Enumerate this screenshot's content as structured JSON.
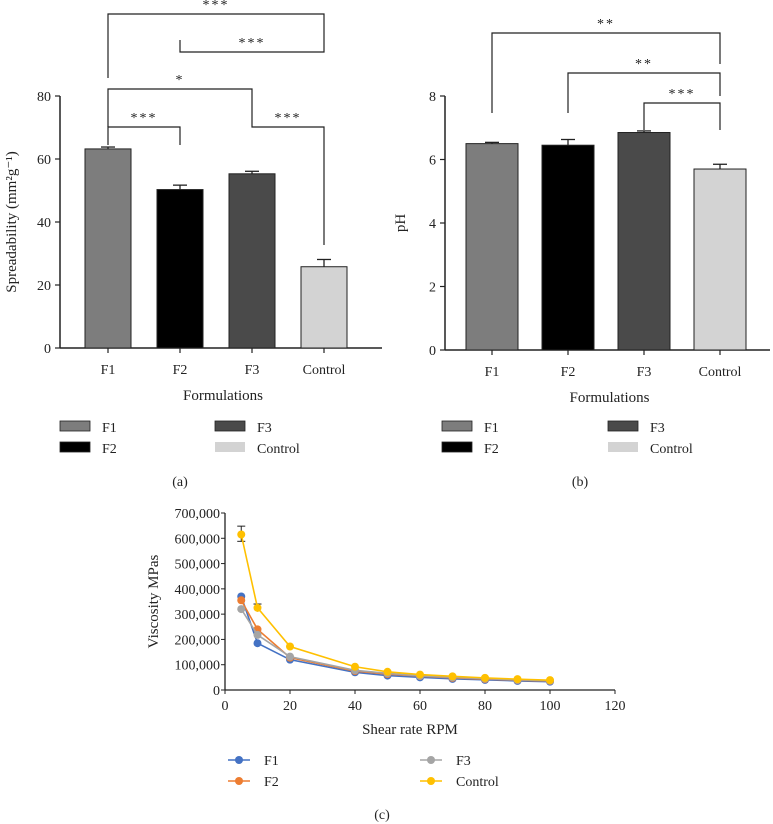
{
  "chart_data": [
    {
      "panel": "(a)",
      "type": "bar",
      "categories": [
        "F1",
        "F2",
        "F3",
        "Control"
      ],
      "values": [
        63.2,
        50.3,
        55.3,
        25.8
      ],
      "errors": [
        0.6,
        1.4,
        0.8,
        2.3
      ],
      "colors": [
        "#7d7d7d",
        "#000000",
        "#4a4a4a",
        "#d3d3d3"
      ],
      "ylim": [
        0,
        80
      ],
      "yticks": [
        "0",
        "20",
        "40",
        "60",
        "80"
      ],
      "xlabel": "Formulations",
      "ylabel": "Spreadability (mm²g⁻¹)",
      "significance": [
        {
          "from": "F1",
          "to": "Control",
          "label": "***"
        },
        {
          "from": "F2",
          "to": "Control",
          "label": "***"
        },
        {
          "from": "F1",
          "to": "F3",
          "label": "*"
        },
        {
          "from": "F1",
          "to": "F2",
          "label": "***"
        },
        {
          "from": "F3",
          "to": "Control",
          "label": "***"
        }
      ],
      "legend": [
        "F1",
        "F2",
        "F3",
        "Control"
      ]
    },
    {
      "panel": "(b)",
      "type": "bar",
      "categories": [
        "F1",
        "F2",
        "F3",
        "Control"
      ],
      "values": [
        6.5,
        6.45,
        6.85,
        5.7
      ],
      "errors": [
        0.04,
        0.18,
        0.05,
        0.15
      ],
      "colors": [
        "#7d7d7d",
        "#000000",
        "#4a4a4a",
        "#d3d3d3"
      ],
      "ylim": [
        0,
        8
      ],
      "yticks": [
        "0",
        "2",
        "4",
        "6",
        "8"
      ],
      "xlabel": "Formulations",
      "ylabel": "pH",
      "significance": [
        {
          "from": "F1",
          "to": "Control",
          "label": "**"
        },
        {
          "from": "F2",
          "to": "Control",
          "label": "**"
        },
        {
          "from": "F3",
          "to": "Control",
          "label": "***"
        }
      ],
      "legend": [
        "F1",
        "F2",
        "F3",
        "Control"
      ]
    },
    {
      "panel": "(c)",
      "type": "line",
      "x": [
        5,
        10,
        20,
        40,
        50,
        60,
        70,
        80,
        90,
        100
      ],
      "series": [
        {
          "name": "F1",
          "color": "#4472c4",
          "values": [
            370000,
            185000,
            120000,
            70000,
            57000,
            50000,
            44000,
            40000,
            36000,
            33000
          ]
        },
        {
          "name": "F2",
          "color": "#ed7d31",
          "values": [
            355000,
            240000,
            128000,
            75000,
            63000,
            55000,
            48000,
            43000,
            39000,
            36000
          ]
        },
        {
          "name": "F3",
          "color": "#a5a5a5",
          "values": [
            320000,
            218000,
            132000,
            78000,
            66000,
            56000,
            50000,
            45000,
            40000,
            37000
          ]
        },
        {
          "name": "Control",
          "color": "#ffc000",
          "values": [
            615000,
            325000,
            172000,
            92000,
            72000,
            61000,
            54000,
            48000,
            43000,
            39000
          ]
        }
      ],
      "xlim": [
        0,
        120
      ],
      "ylim": [
        0,
        700000
      ],
      "xticks": [
        "0",
        "20",
        "40",
        "60",
        "80",
        "100",
        "120"
      ],
      "yticks": [
        "0",
        "100,000",
        "200,000",
        "300,000",
        "400,000",
        "500,000",
        "600,000",
        "700,000"
      ],
      "xlabel": "Shear rate RPM",
      "ylabel": "Viscosity MPas",
      "legend": [
        "F1",
        "F2",
        "F3",
        "Control"
      ]
    }
  ]
}
